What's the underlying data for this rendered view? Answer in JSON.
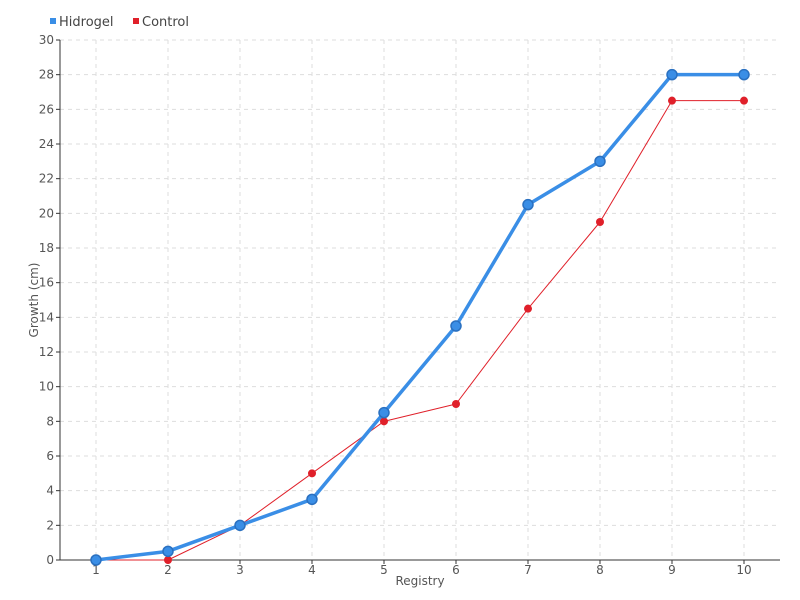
{
  "chart_data": {
    "type": "line",
    "title": "",
    "xlabel": "Registry",
    "ylabel": "Growth (cm)",
    "x": [
      1,
      2,
      3,
      4,
      5,
      6,
      7,
      8,
      9,
      10
    ],
    "xlim": [
      0.5,
      10.5
    ],
    "ylim": [
      0,
      30
    ],
    "y_ticks": [
      0,
      2,
      4,
      6,
      8,
      10,
      12,
      14,
      16,
      18,
      20,
      22,
      24,
      26,
      28,
      30
    ],
    "grid": true,
    "legend_position": "top-left",
    "series": [
      {
        "name": "Hidrogel",
        "color": "#3a8ee6",
        "values": [
          0,
          0.5,
          2,
          3.5,
          8.5,
          13.5,
          20.5,
          23,
          28,
          28
        ]
      },
      {
        "name": "Control",
        "color": "#e0202a",
        "values": [
          0,
          0,
          2,
          5,
          8,
          9,
          14.5,
          19.5,
          26.5,
          26.5
        ]
      }
    ]
  }
}
